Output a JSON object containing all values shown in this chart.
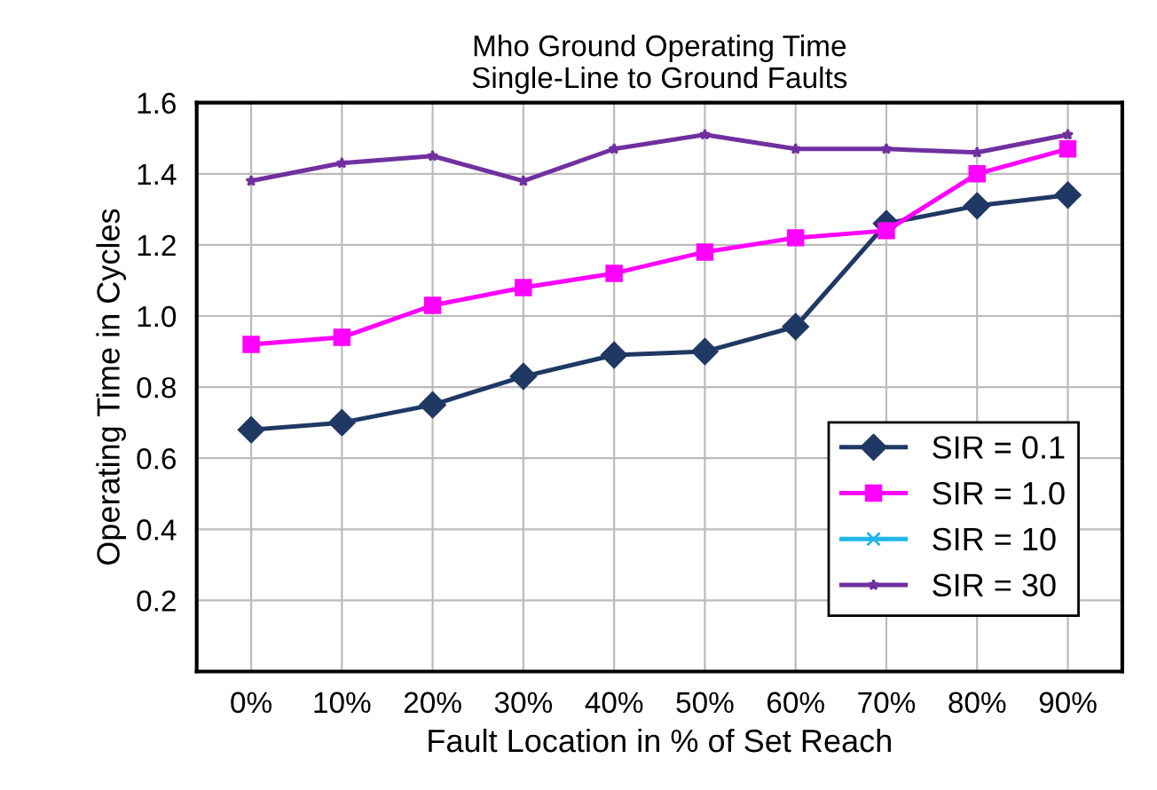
{
  "chart_data": {
    "type": "line",
    "title": "Mho Ground Operating Time\nSingle-Line to Ground Faults",
    "xlabel": "Fault Location in % of Set Reach",
    "ylabel": "Operating Time in Cycles",
    "categories": [
      "0%",
      "10%",
      "20%",
      "30%",
      "40%",
      "50%",
      "60%",
      "70%",
      "80%",
      "90%"
    ],
    "series": [
      {
        "name": "SIR = 0.1",
        "color": "#1f3864",
        "marker": "diamond",
        "values": [
          0.68,
          0.7,
          0.75,
          0.83,
          0.89,
          0.9,
          0.97,
          1.26,
          1.31,
          1.34
        ]
      },
      {
        "name": "SIR = 1.0",
        "color": "#ff00ff",
        "marker": "square",
        "values": [
          0.92,
          0.94,
          1.03,
          1.08,
          1.12,
          1.18,
          1.22,
          1.24,
          1.4,
          1.47
        ]
      },
      {
        "name": "SIR = 10",
        "color": "#22b5e8",
        "marker": "cross",
        "values": [
          null,
          null,
          null,
          null,
          null,
          null,
          null,
          null,
          null,
          null
        ]
      },
      {
        "name": "SIR = 30",
        "color": "#7030a0",
        "marker": "star",
        "values": [
          1.38,
          1.43,
          1.45,
          1.38,
          1.47,
          1.51,
          1.47,
          1.47,
          1.46,
          1.51
        ]
      }
    ],
    "ylim": [
      0,
      1.6
    ],
    "yticks": [
      0.2,
      0.4,
      0.6,
      0.8,
      {
        "value": 1,
        "label": "1.0"
      },
      1.2,
      1.4,
      1.6
    ],
    "grid": true,
    "legend": "bottom right",
    "line_style": "solid"
  }
}
